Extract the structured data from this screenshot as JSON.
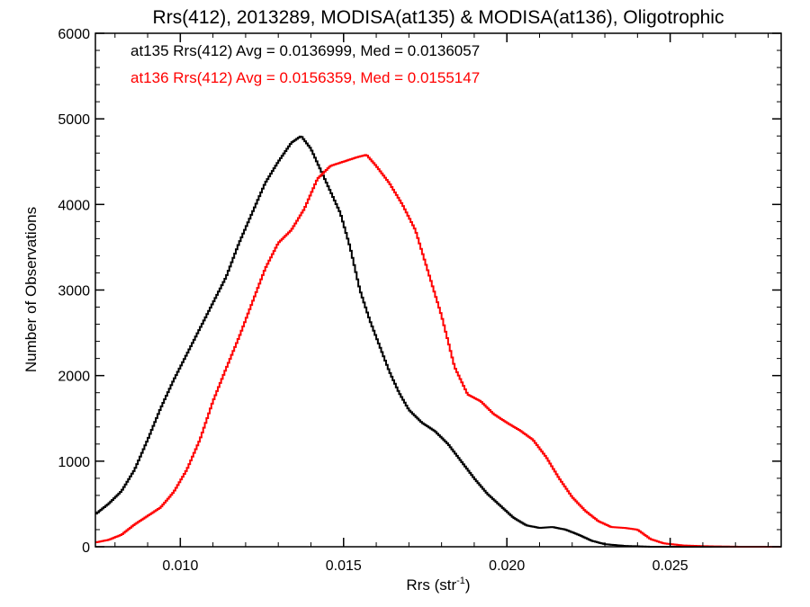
{
  "chart_data": {
    "type": "line",
    "step": true,
    "title": "Rrs(412), 2013289, MODISA(at135) & MODISA(at136), Oligotrophic",
    "xlabel": "Rrs (str",
    "xlabel_sup": "-1",
    "xlabel_end": ")",
    "ylabel": "Number of Observations",
    "xlim": [
      0.0074,
      0.0284
    ],
    "ylim": [
      0,
      6000
    ],
    "x_ticks": [
      0.01,
      0.015,
      0.02,
      0.025
    ],
    "x_tick_labels": [
      "0.010",
      "0.015",
      "0.020",
      "0.025"
    ],
    "y_ticks": [
      0,
      1000,
      2000,
      3000,
      4000,
      5000,
      6000
    ],
    "y_tick_labels": [
      "0",
      "1000",
      "2000",
      "3000",
      "4000",
      "5000",
      "6000"
    ],
    "grid": false,
    "series": [
      {
        "name": "at135",
        "color": "#000000",
        "label": "at135 Rrs(412) Avg = 0.0136999, Med = 0.0136057",
        "points": [
          [
            0.0074,
            380
          ],
          [
            0.0078,
            500
          ],
          [
            0.0082,
            650
          ],
          [
            0.0086,
            900
          ],
          [
            0.009,
            1250
          ],
          [
            0.0094,
            1620
          ],
          [
            0.0098,
            1950
          ],
          [
            0.0102,
            2250
          ],
          [
            0.0106,
            2550
          ],
          [
            0.011,
            2850
          ],
          [
            0.0114,
            3150
          ],
          [
            0.0118,
            3550
          ],
          [
            0.0122,
            3900
          ],
          [
            0.0126,
            4250
          ],
          [
            0.013,
            4500
          ],
          [
            0.0134,
            4720
          ],
          [
            0.0137,
            4800
          ],
          [
            0.014,
            4650
          ],
          [
            0.0143,
            4400
          ],
          [
            0.0146,
            4150
          ],
          [
            0.0149,
            3900
          ],
          [
            0.0152,
            3500
          ],
          [
            0.0155,
            3000
          ],
          [
            0.0158,
            2650
          ],
          [
            0.0161,
            2350
          ],
          [
            0.0164,
            2050
          ],
          [
            0.0167,
            1800
          ],
          [
            0.017,
            1600
          ],
          [
            0.0174,
            1450
          ],
          [
            0.0178,
            1350
          ],
          [
            0.0182,
            1200
          ],
          [
            0.0186,
            1000
          ],
          [
            0.019,
            800
          ],
          [
            0.0194,
            620
          ],
          [
            0.0198,
            480
          ],
          [
            0.0202,
            340
          ],
          [
            0.0206,
            250
          ],
          [
            0.021,
            220
          ],
          [
            0.0214,
            230
          ],
          [
            0.0218,
            200
          ],
          [
            0.0222,
            140
          ],
          [
            0.0226,
            70
          ],
          [
            0.023,
            30
          ],
          [
            0.0236,
            10
          ],
          [
            0.0244,
            0
          ],
          [
            0.0284,
            0
          ]
        ]
      },
      {
        "name": "at136",
        "color": "#ff0000",
        "label": "at136 Rrs(412) Avg = 0.0156359, Med = 0.0155147",
        "points": [
          [
            0.0074,
            50
          ],
          [
            0.0078,
            80
          ],
          [
            0.0082,
            140
          ],
          [
            0.0086,
            260
          ],
          [
            0.009,
            360
          ],
          [
            0.0094,
            460
          ],
          [
            0.0098,
            640
          ],
          [
            0.0102,
            900
          ],
          [
            0.0106,
            1250
          ],
          [
            0.011,
            1700
          ],
          [
            0.0114,
            2080
          ],
          [
            0.0118,
            2450
          ],
          [
            0.0122,
            2850
          ],
          [
            0.0126,
            3250
          ],
          [
            0.013,
            3550
          ],
          [
            0.0134,
            3700
          ],
          [
            0.0138,
            3950
          ],
          [
            0.0142,
            4300
          ],
          [
            0.0146,
            4450
          ],
          [
            0.015,
            4500
          ],
          [
            0.0154,
            4550
          ],
          [
            0.0157,
            4580
          ],
          [
            0.016,
            4450
          ],
          [
            0.0164,
            4250
          ],
          [
            0.0168,
            4000
          ],
          [
            0.0172,
            3700
          ],
          [
            0.0176,
            3200
          ],
          [
            0.018,
            2700
          ],
          [
            0.0184,
            2100
          ],
          [
            0.0188,
            1780
          ],
          [
            0.0192,
            1700
          ],
          [
            0.0196,
            1550
          ],
          [
            0.02,
            1450
          ],
          [
            0.0204,
            1360
          ],
          [
            0.0208,
            1250
          ],
          [
            0.0212,
            1050
          ],
          [
            0.0216,
            800
          ],
          [
            0.022,
            580
          ],
          [
            0.0224,
            420
          ],
          [
            0.0228,
            300
          ],
          [
            0.0232,
            230
          ],
          [
            0.0236,
            220
          ],
          [
            0.024,
            200
          ],
          [
            0.0244,
            90
          ],
          [
            0.0248,
            40
          ],
          [
            0.0254,
            15
          ],
          [
            0.0262,
            5
          ],
          [
            0.0272,
            0
          ],
          [
            0.0284,
            0
          ]
        ]
      }
    ]
  }
}
